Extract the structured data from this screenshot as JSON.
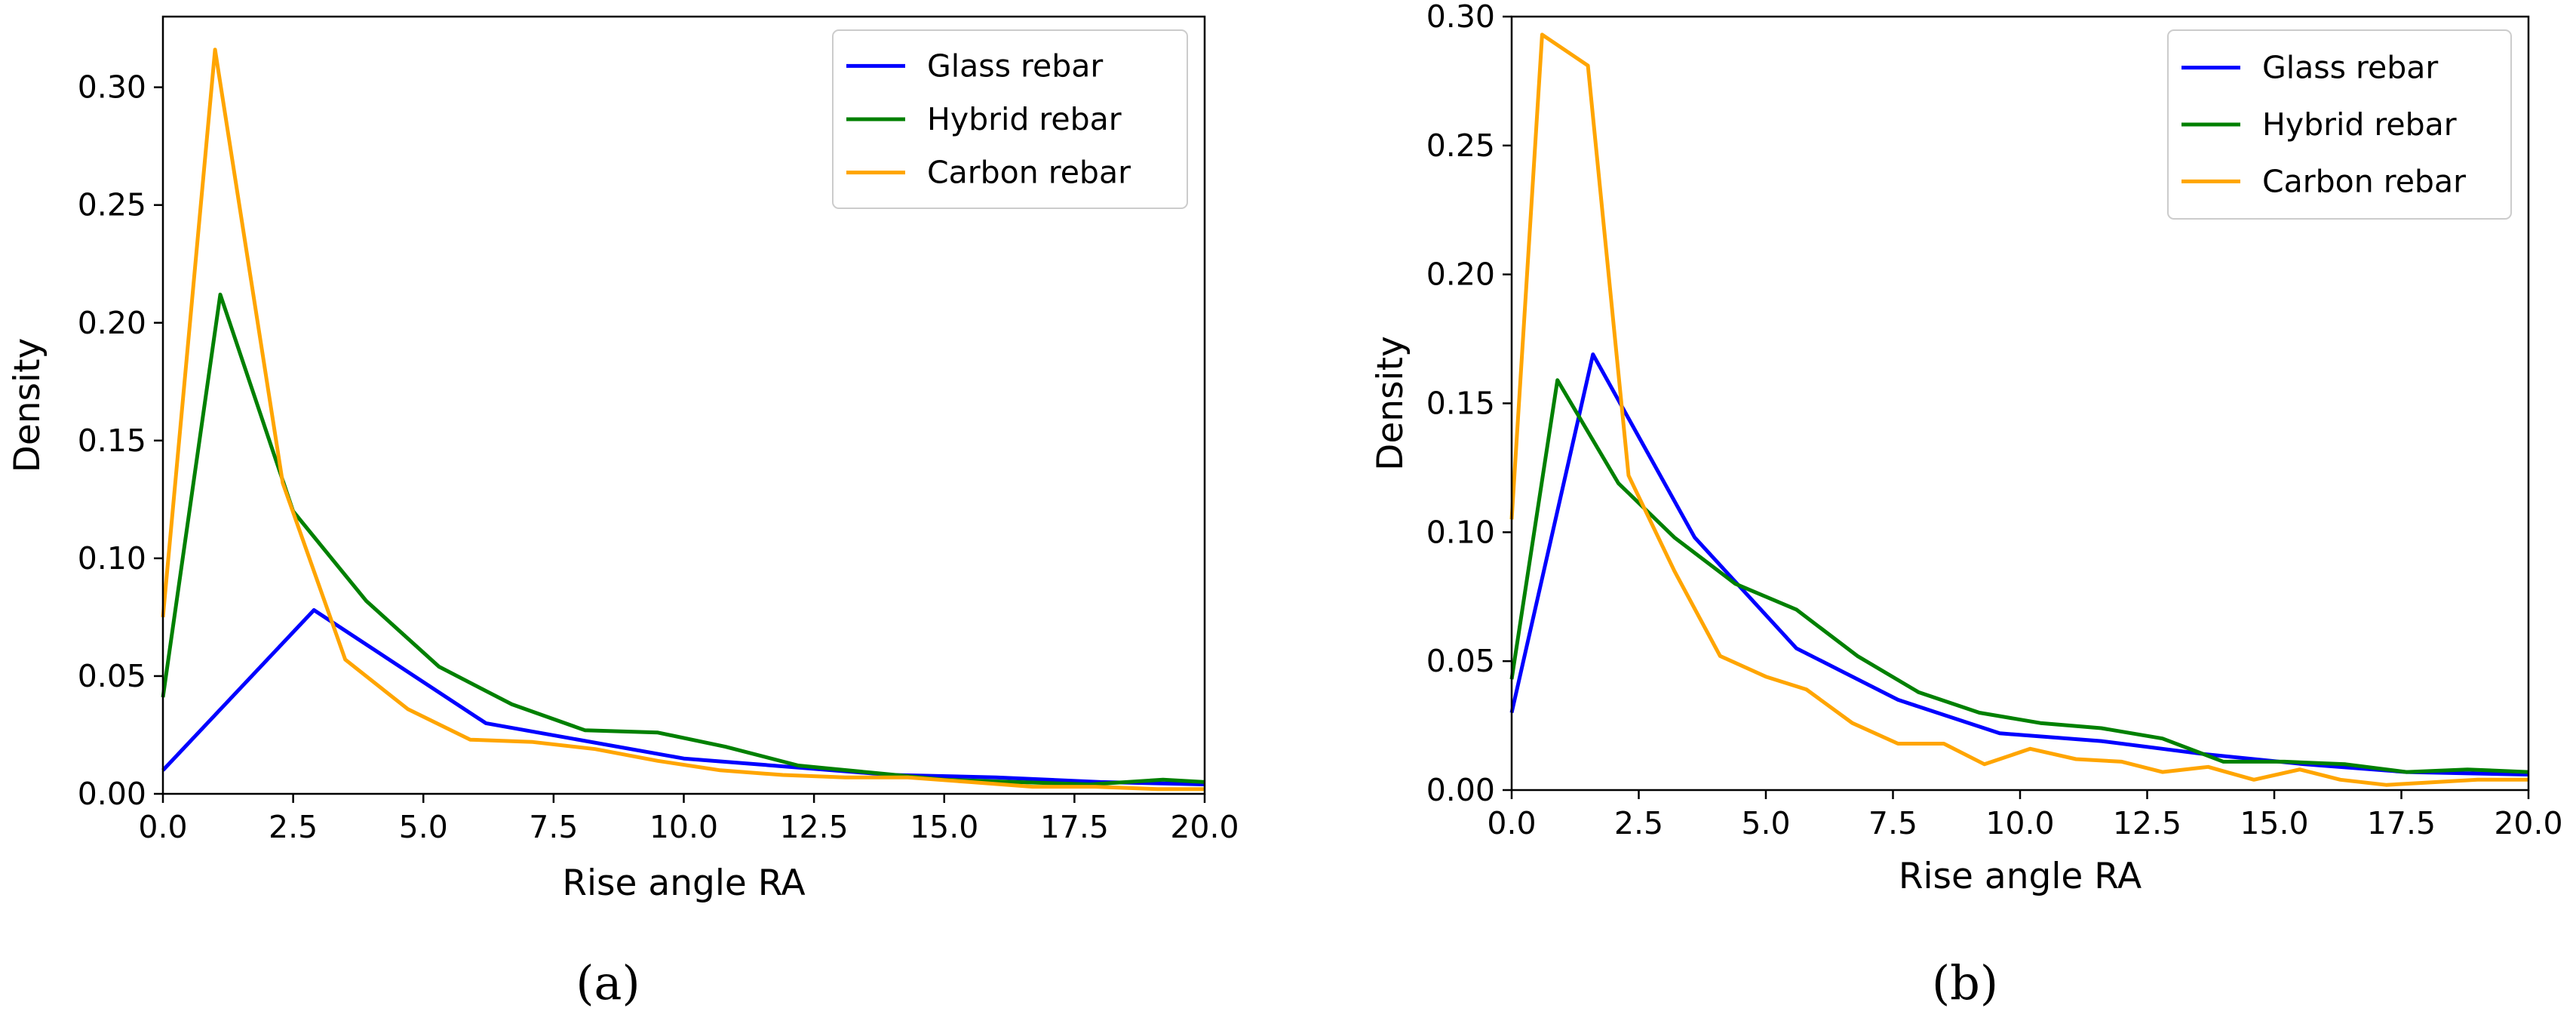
{
  "chart_data": [
    {
      "type": "line",
      "panel_label": "(a)",
      "xlabel": "Rise angle RA",
      "ylabel": "Density",
      "xlim": [
        0,
        20
      ],
      "ylim": [
        0,
        0.33
      ],
      "xticks": [
        "0.0",
        "2.5",
        "5.0",
        "7.5",
        "10.0",
        "12.5",
        "15.0",
        "17.5",
        "20.0"
      ],
      "yticks": [
        "0.00",
        "0.05",
        "0.10",
        "0.15",
        "0.20",
        "0.25",
        "0.30"
      ],
      "legend_position": "top-right",
      "grid": false,
      "series": [
        {
          "name": "Glass rebar",
          "color": "#0000ff",
          "x": [
            0,
            2.9,
            6.2,
            10.0,
            14.0,
            16.0,
            18.0,
            20.0
          ],
          "y": [
            0.01,
            0.078,
            0.03,
            0.015,
            0.008,
            0.007,
            0.005,
            0.004
          ]
        },
        {
          "name": "Hybrid rebar",
          "color": "#008000",
          "x": [
            0,
            1.1,
            2.5,
            3.9,
            5.3,
            6.7,
            8.1,
            9.5,
            10.8,
            12.2,
            13.6,
            15.0,
            16.4,
            17.8,
            19.2,
            20.0
          ],
          "y": [
            0.041,
            0.212,
            0.12,
            0.082,
            0.054,
            0.038,
            0.027,
            0.026,
            0.02,
            0.012,
            0.009,
            0.006,
            0.005,
            0.004,
            0.006,
            0.005
          ]
        },
        {
          "name": "Carbon rebar",
          "color": "#ffa500",
          "x": [
            0,
            1.0,
            2.3,
            3.5,
            4.7,
            5.9,
            7.1,
            8.3,
            9.5,
            10.7,
            11.9,
            13.1,
            14.3,
            15.5,
            16.7,
            17.9,
            19.1,
            20.0
          ],
          "y": [
            0.075,
            0.316,
            0.132,
            0.057,
            0.036,
            0.023,
            0.022,
            0.019,
            0.014,
            0.01,
            0.008,
            0.007,
            0.007,
            0.005,
            0.003,
            0.003,
            0.002,
            0.002
          ]
        }
      ]
    },
    {
      "type": "line",
      "panel_label": "(b)",
      "xlabel": "Rise angle RA",
      "ylabel": "Density",
      "xlim": [
        0,
        20
      ],
      "ylim": [
        0,
        0.3
      ],
      "xticks": [
        "0.0",
        "2.5",
        "5.0",
        "7.5",
        "10.0",
        "12.5",
        "15.0",
        "17.5",
        "20.0"
      ],
      "yticks": [
        "0.00",
        "0.05",
        "0.10",
        "0.15",
        "0.20",
        "0.25",
        "0.30"
      ],
      "legend_position": "top-right",
      "grid": false,
      "series": [
        {
          "name": "Glass rebar",
          "color": "#0000ff",
          "x": [
            0,
            1.6,
            3.6,
            5.6,
            7.6,
            9.6,
            11.6,
            13.6,
            15.6,
            17.6,
            20.0
          ],
          "y": [
            0.03,
            0.169,
            0.098,
            0.055,
            0.035,
            0.022,
            0.019,
            0.014,
            0.01,
            0.007,
            0.006
          ]
        },
        {
          "name": "Hybrid rebar",
          "color": "#008000",
          "x": [
            0,
            0.9,
            2.1,
            3.2,
            4.4,
            5.6,
            6.8,
            8.0,
            9.2,
            10.4,
            11.6,
            12.8,
            14.0,
            15.2,
            16.4,
            17.6,
            18.8,
            20.0
          ],
          "y": [
            0.043,
            0.159,
            0.119,
            0.098,
            0.08,
            0.07,
            0.052,
            0.038,
            0.03,
            0.026,
            0.024,
            0.02,
            0.011,
            0.011,
            0.01,
            0.007,
            0.008,
            0.007
          ]
        },
        {
          "name": "Carbon rebar",
          "color": "#ffa500",
          "x": [
            0,
            0.6,
            1.5,
            2.3,
            3.2,
            4.1,
            5.0,
            5.8,
            6.7,
            7.6,
            8.5,
            9.3,
            10.2,
            11.1,
            12.0,
            12.8,
            13.7,
            14.6,
            15.5,
            16.3,
            17.2,
            18.1,
            19.0,
            20.0
          ],
          "y": [
            0.105,
            0.293,
            0.281,
            0.122,
            0.085,
            0.052,
            0.044,
            0.039,
            0.026,
            0.018,
            0.018,
            0.01,
            0.016,
            0.012,
            0.011,
            0.007,
            0.009,
            0.004,
            0.008,
            0.004,
            0.002,
            0.003,
            0.004,
            0.004
          ]
        }
      ]
    }
  ]
}
